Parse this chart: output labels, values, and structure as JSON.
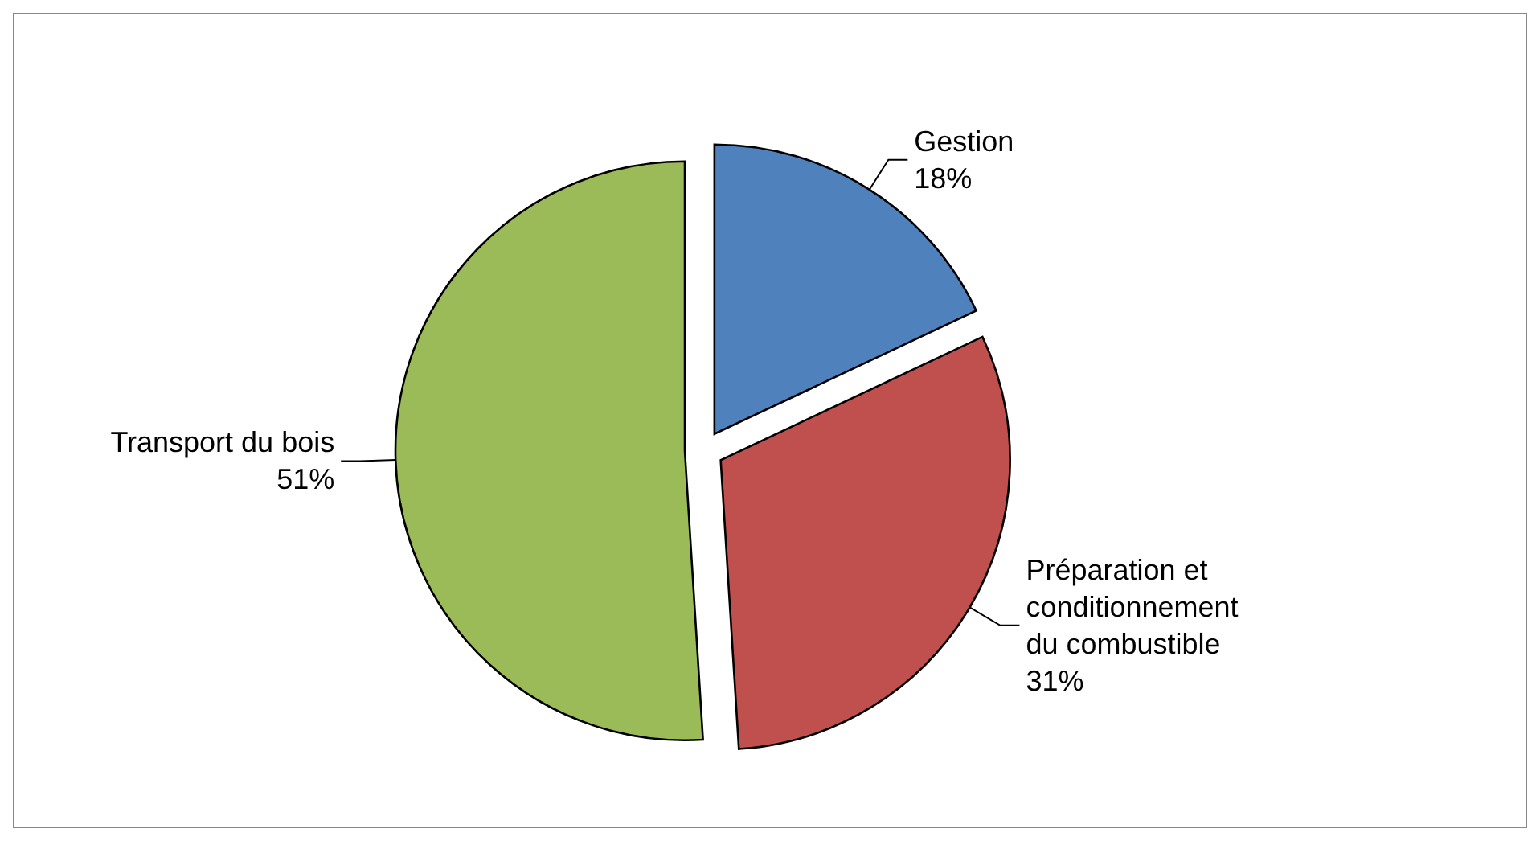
{
  "chart_data": {
    "type": "pie",
    "categories": [
      "Gestion",
      "Préparation et conditionnement du combustible",
      "Transport du bois"
    ],
    "values": [
      18,
      31,
      51
    ],
    "colors": [
      "#4f81bd",
      "#c0504d",
      "#9bbb59"
    ],
    "value_labels": [
      "18%",
      "31%",
      "51%"
    ]
  }
}
